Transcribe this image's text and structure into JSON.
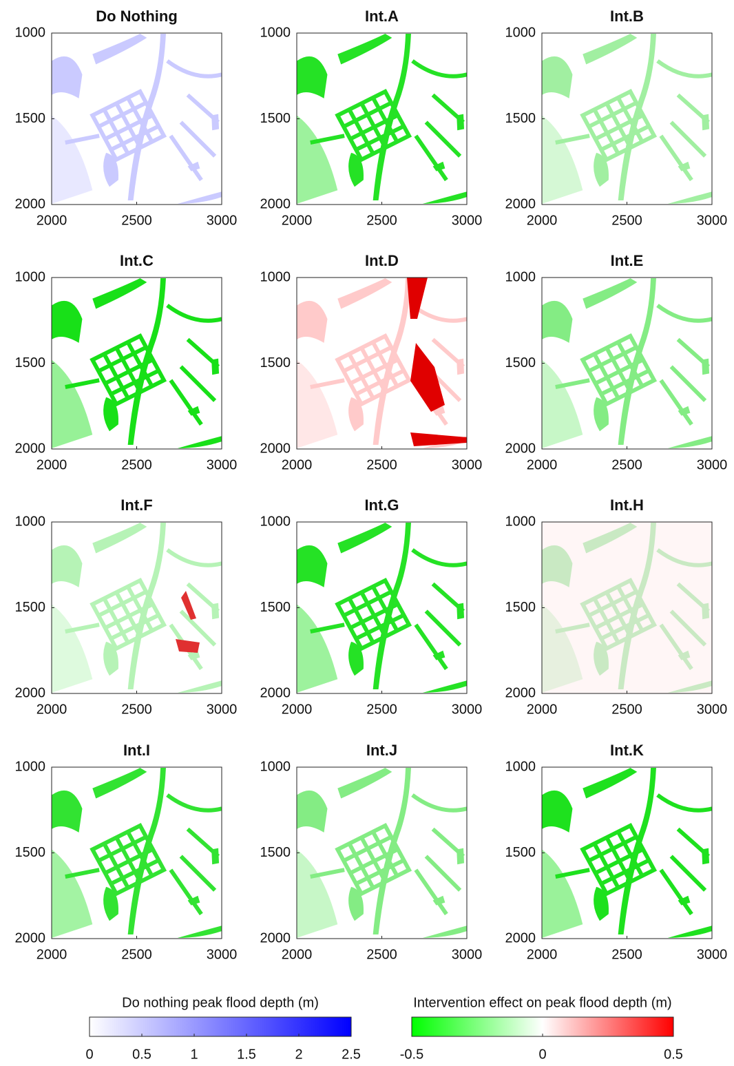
{
  "chart_data": [
    {
      "type": "map",
      "title": "Do Nothing",
      "xlim": [
        2000,
        3000
      ],
      "ylim": [
        2000,
        1000
      ],
      "xticks": [
        2000,
        2500,
        3000
      ],
      "yticks": [
        1000,
        1500,
        2000
      ]
    },
    {
      "type": "map",
      "title": "Int.A",
      "xlim": [
        2000,
        3000
      ],
      "ylim": [
        2000,
        1000
      ],
      "xticks": [
        2000,
        2500,
        3000
      ],
      "yticks": [
        1000,
        1500,
        2000
      ]
    },
    {
      "type": "map",
      "title": "Int.B",
      "xlim": [
        2000,
        3000
      ],
      "ylim": [
        2000,
        1000
      ],
      "xticks": [
        2000,
        2500,
        3000
      ],
      "yticks": [
        1000,
        1500,
        2000
      ]
    },
    {
      "type": "map",
      "title": "Int.C",
      "xlim": [
        2000,
        3000
      ],
      "ylim": [
        2000,
        1000
      ],
      "xticks": [
        2000,
        2500,
        3000
      ],
      "yticks": [
        1000,
        1500,
        2000
      ]
    },
    {
      "type": "map",
      "title": "Int.D",
      "xlim": [
        2000,
        3000
      ],
      "ylim": [
        2000,
        1000
      ],
      "xticks": [
        2000,
        2500,
        3000
      ],
      "yticks": [
        1000,
        1500,
        2000
      ]
    },
    {
      "type": "map",
      "title": "Int.E",
      "xlim": [
        2000,
        3000
      ],
      "ylim": [
        2000,
        1000
      ],
      "xticks": [
        2000,
        2500,
        3000
      ],
      "yticks": [
        1000,
        1500,
        2000
      ]
    },
    {
      "type": "map",
      "title": "Int.F",
      "xlim": [
        2000,
        3000
      ],
      "ylim": [
        2000,
        1000
      ],
      "xticks": [
        2000,
        2500,
        3000
      ],
      "yticks": [
        1000,
        1500,
        2000
      ]
    },
    {
      "type": "map",
      "title": "Int.G",
      "xlim": [
        2000,
        3000
      ],
      "ylim": [
        2000,
        1000
      ],
      "xticks": [
        2000,
        2500,
        3000
      ],
      "yticks": [
        1000,
        1500,
        2000
      ]
    },
    {
      "type": "map",
      "title": "Int.H",
      "xlim": [
        2000,
        3000
      ],
      "ylim": [
        2000,
        1000
      ],
      "xticks": [
        2000,
        2500,
        3000
      ],
      "yticks": [
        1000,
        1500,
        2000
      ]
    },
    {
      "type": "map",
      "title": "Int.I",
      "xlim": [
        2000,
        3000
      ],
      "ylim": [
        2000,
        1000
      ],
      "xticks": [
        2000,
        2500,
        3000
      ],
      "yticks": [
        1000,
        1500,
        2000
      ]
    },
    {
      "type": "map",
      "title": "Int.J",
      "xlim": [
        2000,
        3000
      ],
      "ylim": [
        2000,
        1000
      ],
      "xticks": [
        2000,
        2500,
        3000
      ],
      "yticks": [
        1000,
        1500,
        2000
      ]
    },
    {
      "type": "map",
      "title": "Int.K",
      "xlim": [
        2000,
        3000
      ],
      "ylim": [
        2000,
        1000
      ],
      "xticks": [
        2000,
        2500,
        3000
      ],
      "yticks": [
        1000,
        1500,
        2000
      ]
    },
    {
      "type": "colorbar",
      "title": "Do nothing peak flood depth (m)",
      "colors": [
        "#ffffff",
        "#0000ff"
      ],
      "xlim": [
        0,
        2.5
      ],
      "xticks": [
        0,
        0.5,
        1,
        1.5,
        2,
        2.5
      ]
    },
    {
      "type": "colorbar",
      "title": "Intervention effect on peak flood depth (m)",
      "colors": [
        "#00ff00",
        "#ffffff",
        "#ff0000"
      ],
      "xlim": [
        -0.5,
        0.5
      ],
      "xticks": [
        -0.5,
        0,
        0.5
      ]
    }
  ]
}
